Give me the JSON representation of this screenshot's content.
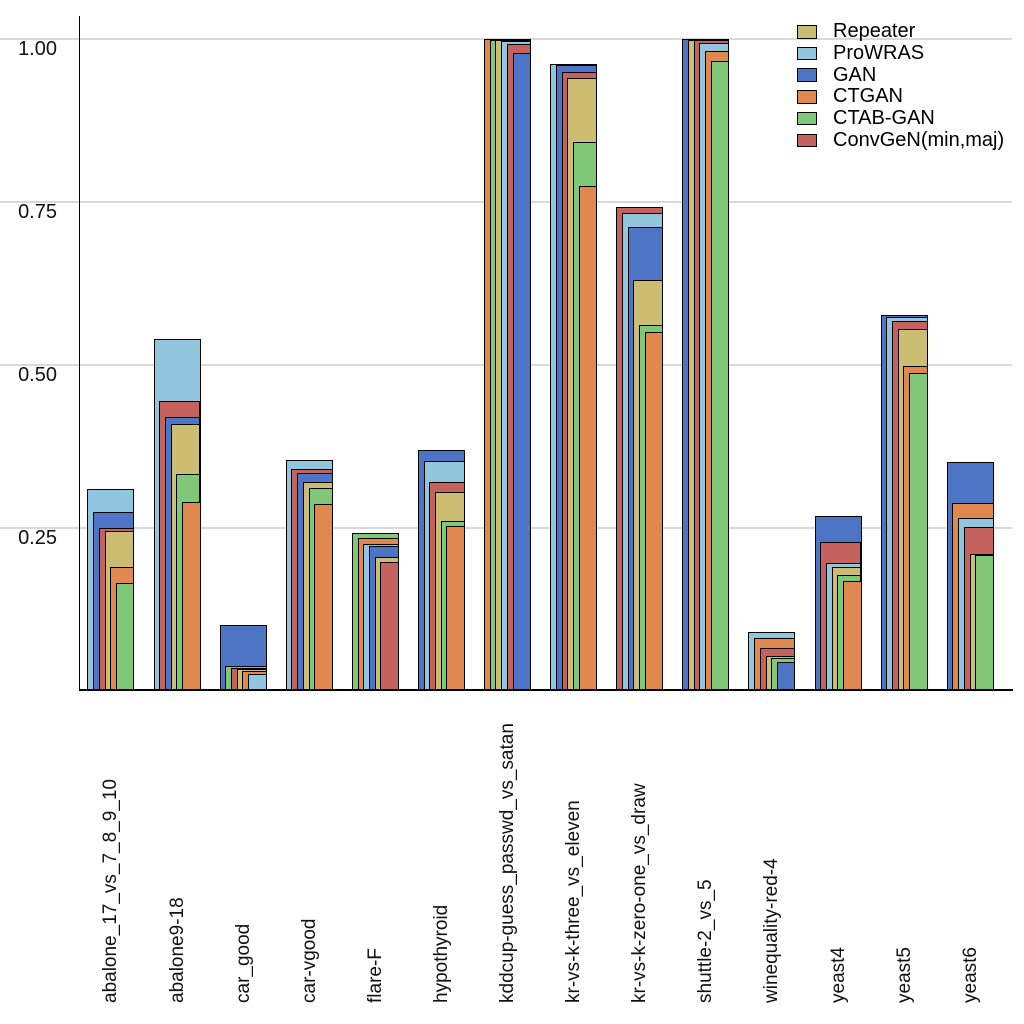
{
  "chart_data": {
    "type": "bar",
    "title": "",
    "xlabel": "",
    "ylabel": "",
    "ylim": [
      0,
      1.02
    ],
    "yticks": [
      "1.00",
      "0.75",
      "0.50",
      "0.25"
    ],
    "ytick_values": [
      1.0,
      0.75,
      0.5,
      0.25
    ],
    "grid": "horizontal",
    "legend_position": "top-right",
    "bar_style": "overlapping nested bars, right-aligned; within each group bars are drawn widest-to-narrowest in descending value order (draw_order = indices into series)",
    "series": [
      {
        "name": "Repeater",
        "color": "#ccbd72"
      },
      {
        "name": "ProWRAS",
        "color": "#92c5de"
      },
      {
        "name": "GAN",
        "color": "#4e74c6"
      },
      {
        "name": "CTGAN",
        "color": "#e0894f"
      },
      {
        "name": "CTAB-GAN",
        "color": "#80c878"
      },
      {
        "name": "ConvGeN(min,maj)",
        "color": "#c5625d"
      }
    ],
    "groups": [
      {
        "label": "abalone_17_vs_7_8_9_10",
        "values": [
          0.245,
          0.31,
          0.275,
          0.19,
          0.165,
          0.25
        ],
        "draw_order": [
          1,
          2,
          5,
          0,
          3,
          4
        ]
      },
      {
        "label": "abalone9-18",
        "values": [
          0.41,
          0.54,
          0.42,
          0.29,
          0.333,
          0.445
        ],
        "draw_order": [
          1,
          5,
          2,
          0,
          4,
          3
        ]
      },
      {
        "label": "car_good",
        "values": [
          0.033,
          0.026,
          0.101,
          0.031,
          0.038,
          0.035
        ],
        "draw_order": [
          2,
          4,
          5,
          0,
          3,
          1
        ]
      },
      {
        "label": "car-vgood",
        "values": [
          0.32,
          0.355,
          0.335,
          0.287,
          0.312,
          0.34
        ],
        "draw_order": [
          1,
          5,
          2,
          0,
          4,
          3
        ]
      },
      {
        "label": "flare-F",
        "values": [
          0.205,
          0.226,
          0.222,
          0.234,
          0.242,
          0.198
        ],
        "draw_order": [
          4,
          3,
          1,
          2,
          0,
          5
        ]
      },
      {
        "label": "hypothyroid",
        "values": [
          0.305,
          0.352,
          0.37,
          0.253,
          0.261,
          0.321
        ],
        "draw_order": [
          2,
          1,
          5,
          0,
          4,
          3
        ]
      },
      {
        "label": "kddcup-guess_passwd_vs_satan",
        "values": [
          0.998,
          0.997,
          0.978,
          1.0,
          0.999,
          0.992
        ],
        "draw_order": [
          3,
          4,
          0,
          1,
          5,
          2
        ]
      },
      {
        "label": "kr-vs-k-three_vs_eleven",
        "values": [
          0.94,
          0.962,
          0.96,
          0.775,
          0.842,
          0.95
        ],
        "draw_order": [
          1,
          2,
          5,
          0,
          4,
          3
        ]
      },
      {
        "label": "kr-vs-k-zero-one_vs_draw",
        "values": [
          0.631,
          0.733,
          0.711,
          0.551,
          0.561,
          0.743
        ],
        "draw_order": [
          5,
          1,
          2,
          0,
          4,
          3
        ]
      },
      {
        "label": "shuttle-2_vs_5",
        "values": [
          0.999,
          0.994,
          1.0,
          0.982,
          0.966,
          0.998
        ],
        "draw_order": [
          2,
          0,
          5,
          1,
          3,
          4
        ]
      },
      {
        "label": "winequality-red-4",
        "values": [
          0.054,
          0.09,
          0.044,
          0.081,
          0.05,
          0.066
        ],
        "draw_order": [
          1,
          3,
          5,
          0,
          4,
          2
        ]
      },
      {
        "label": "yeast4",
        "values": [
          0.19,
          0.197,
          0.269,
          0.169,
          0.178,
          0.228
        ],
        "draw_order": [
          2,
          5,
          1,
          0,
          4,
          3
        ]
      },
      {
        "label": "yeast5",
        "values": [
          0.555,
          0.573,
          0.576,
          0.498,
          0.487,
          0.567
        ],
        "draw_order": [
          2,
          1,
          5,
          0,
          3,
          4
        ]
      },
      {
        "label": "yeast6",
        "values": [
          0.21,
          0.265,
          0.351,
          0.289,
          0.209,
          0.252
        ],
        "draw_order": [
          2,
          3,
          1,
          5,
          0,
          4
        ]
      }
    ]
  }
}
